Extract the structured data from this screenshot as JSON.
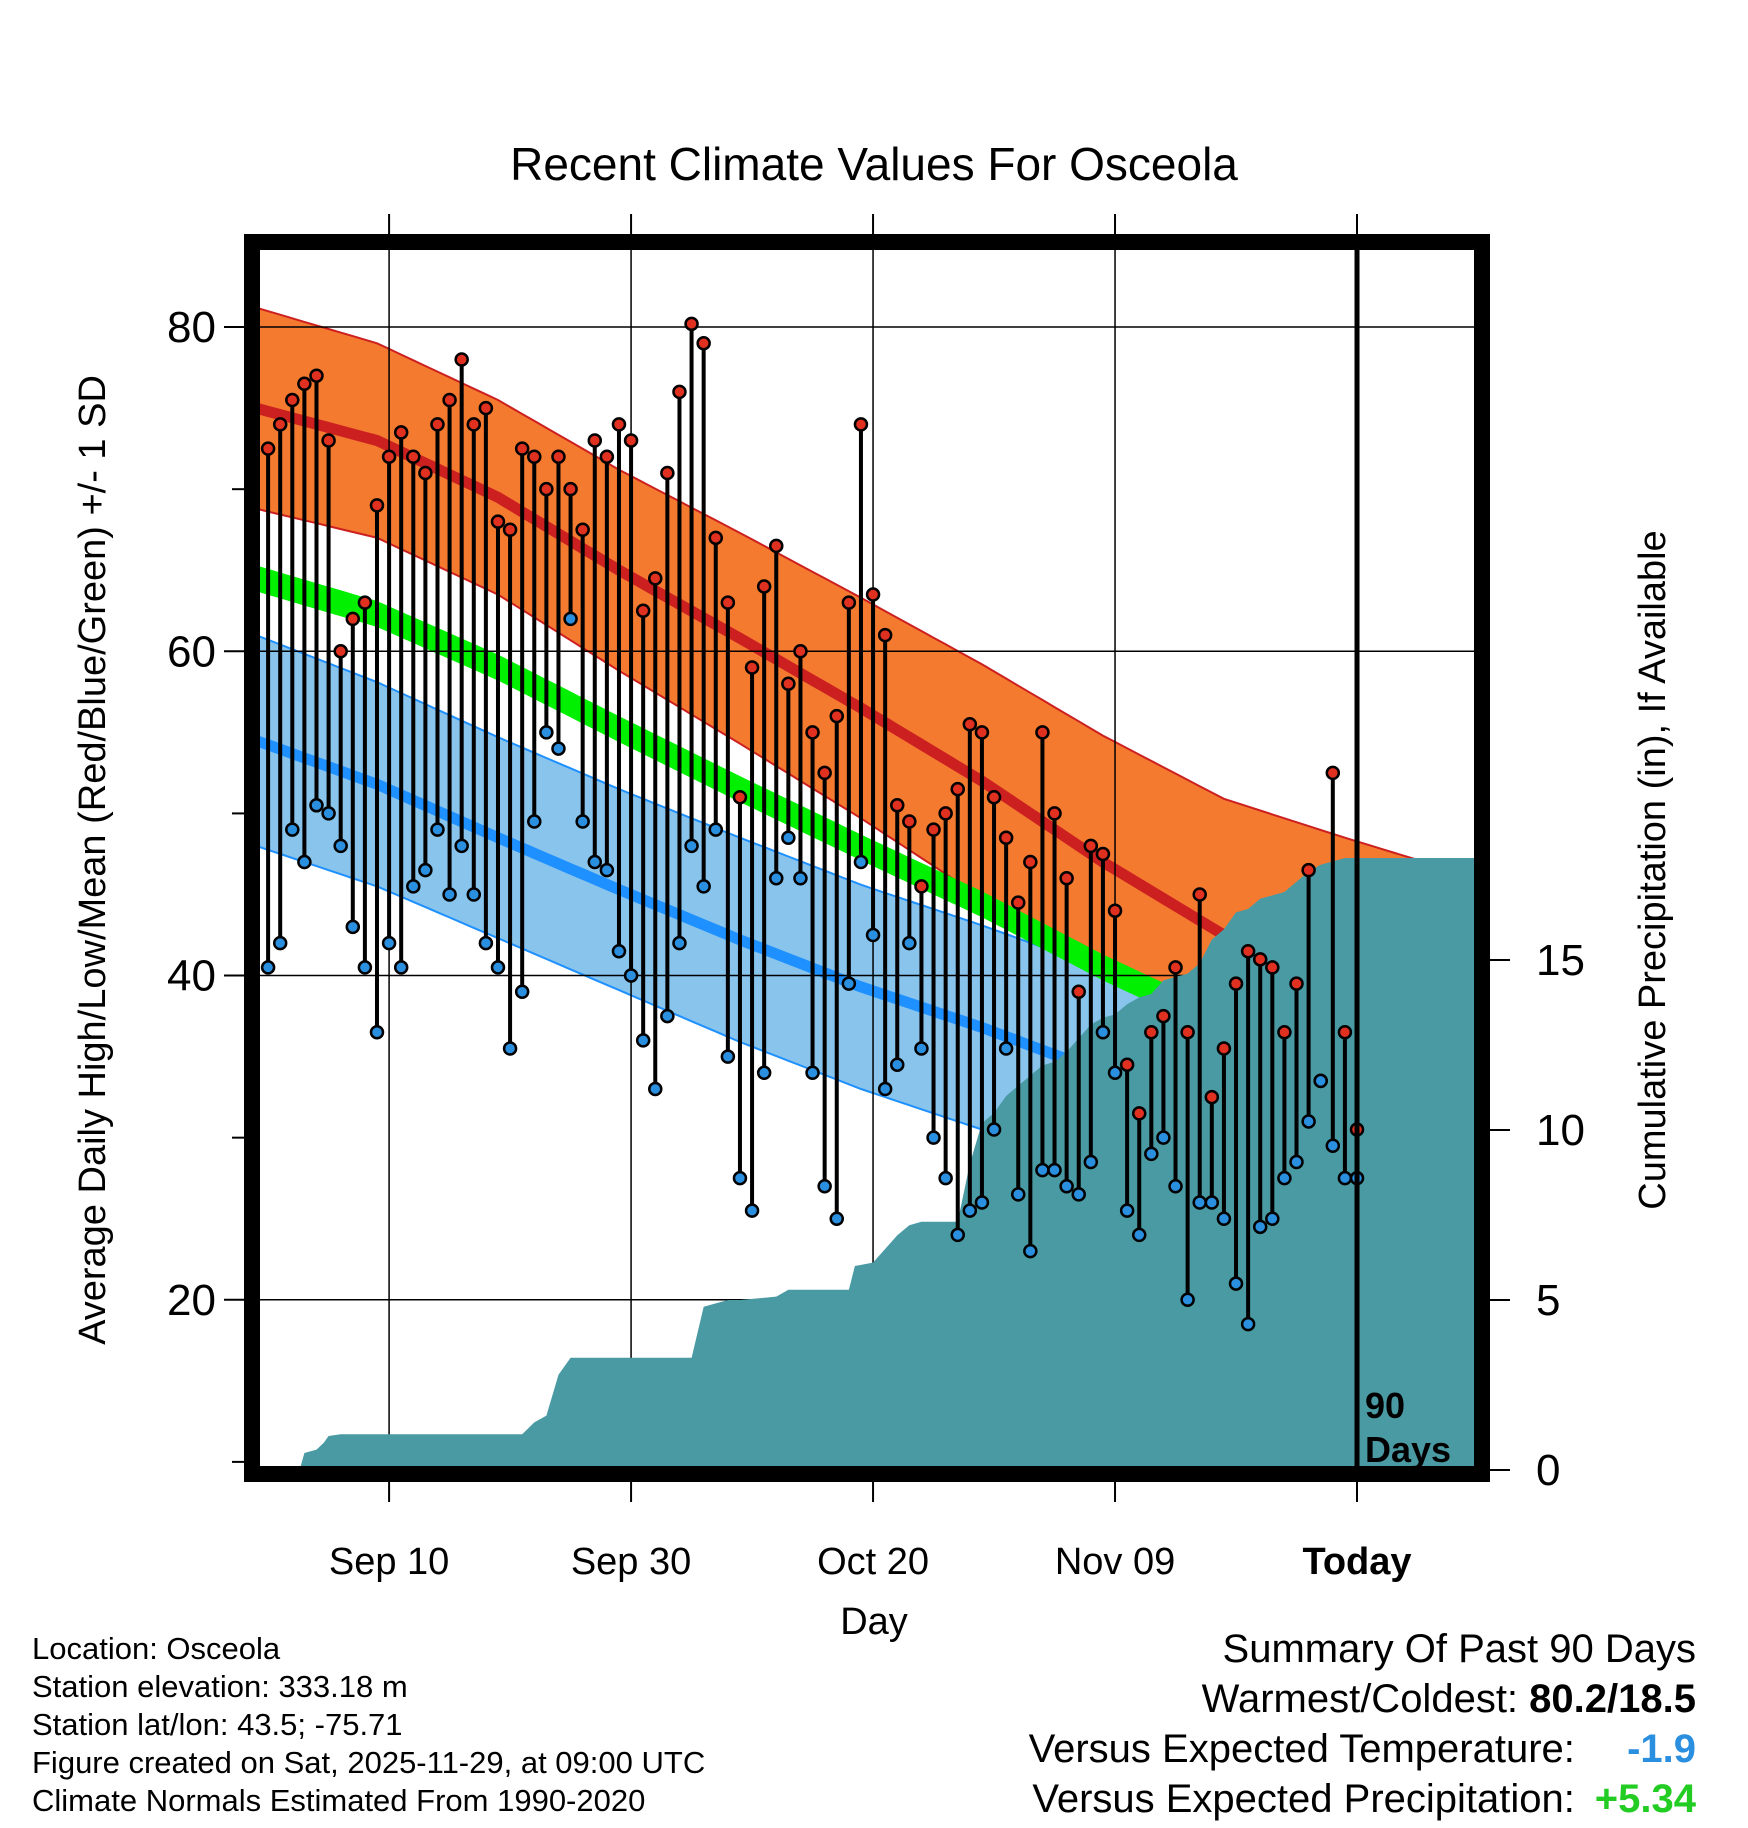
{
  "chart_data": {
    "type": "line",
    "title": "Recent Climate Values For Osceola",
    "xlabel": "Day",
    "ylabel": "Average Daily High/Low/Mean (Red/Blue/Green) +/- 1 SD",
    "y2label": "Cumulative Precipitation (in), If Available",
    "ylim": [
      9.5,
      85
    ],
    "y2lim": [
      0,
      36
    ],
    "y_ticks": [
      80,
      60,
      40,
      20
    ],
    "y2_ticks": [
      15,
      10,
      5,
      0
    ],
    "x_ticks": [
      "Sep 10",
      "Sep 30",
      "Oct 20",
      "Nov 09",
      "Today"
    ],
    "x_tick_days": [
      11,
      31,
      51,
      71,
      91
    ],
    "xlim": [
      0,
      101
    ],
    "today_label_line1": "90",
    "today_label_line2": "Days",
    "colors": {
      "high_band": "#f47a30",
      "high_mean": "#cc2020",
      "low_band": "#88c4ec",
      "low_mean": "#1e90ff",
      "mean_band": "#00f000",
      "precip": "#4a9aa4",
      "high_marker": "#e03020",
      "low_marker": "#2b8fe0"
    },
    "normals": {
      "days": [
        0,
        10,
        20,
        30,
        40,
        50,
        60,
        70,
        80,
        90,
        101
      ],
      "high_mean": [
        75.0,
        73.0,
        69.5,
        65.0,
        60.8,
        56.5,
        52.0,
        47.0,
        42.5,
        39.5,
        36.5
      ],
      "high_sd": [
        6.2,
        6.0,
        6.0,
        6.2,
        6.5,
        6.8,
        7.2,
        7.8,
        8.4,
        9.0,
        9.5
      ],
      "low_mean": [
        54.5,
        51.8,
        48.5,
        45.3,
        42.2,
        39.3,
        36.8,
        34.0,
        31.5,
        29.5,
        28.0
      ],
      "low_sd": [
        6.5,
        6.3,
        6.2,
        6.2,
        6.3,
        6.3,
        6.3,
        6.4,
        6.4,
        6.5,
        6.5
      ],
      "mean_mean": [
        64.5,
        62.3,
        59.0,
        55.2,
        51.5,
        47.9,
        44.4,
        40.5,
        37.0,
        34.5,
        32.3
      ]
    },
    "series": [
      {
        "name": "Daily High",
        "values": [
          72.5,
          74.0,
          75.5,
          76.5,
          77.0,
          73.0,
          60.0,
          62.0,
          63.0,
          69.0,
          72.0,
          73.5,
          72.0,
          71.0,
          74.0,
          75.5,
          78.0,
          74.0,
          75.0,
          68.0,
          67.5,
          72.5,
          72.0,
          70.0,
          72.0,
          70.0,
          67.5,
          73.0,
          72.0,
          74.0,
          73.0,
          62.5,
          64.5,
          71.0,
          76.0,
          80.2,
          79.0,
          67.0,
          63.0,
          51.0,
          59.0,
          64.0,
          66.5,
          58.0,
          60.0,
          55.0,
          52.5,
          56.0,
          63.0,
          74.0,
          63.5,
          61.0,
          50.5,
          49.5,
          45.5,
          49.0,
          50.0,
          51.5,
          55.5,
          55.0,
          51.0,
          48.5,
          44.5,
          47.0,
          55.0,
          50.0,
          46.0,
          39.0,
          48.0,
          47.5,
          44.0,
          34.5,
          31.5,
          36.5,
          37.5,
          40.5,
          36.5,
          45.0,
          32.5,
          35.5,
          39.5,
          41.5,
          41.0,
          40.5,
          36.5,
          39.5,
          46.5,
          33.5,
          52.5,
          36.5,
          30.5
        ]
      },
      {
        "name": "Daily Low",
        "values": [
          40.5,
          42.0,
          49.0,
          47.0,
          50.5,
          50.0,
          48.0,
          43.0,
          40.5,
          36.5,
          42.0,
          40.5,
          45.5,
          46.5,
          49.0,
          45.0,
          48.0,
          45.0,
          42.0,
          40.5,
          35.5,
          39.0,
          49.5,
          55.0,
          54.0,
          62.0,
          49.5,
          47.0,
          46.5,
          41.5,
          40.0,
          36.0,
          33.0,
          37.5,
          42.0,
          48.0,
          45.5,
          49.0,
          35.0,
          27.5,
          25.5,
          34.0,
          46.0,
          48.5,
          46.0,
          34.0,
          27.0,
          25.0,
          39.5,
          47.0,
          42.5,
          33.0,
          34.5,
          42.0,
          35.5,
          30.0,
          27.5,
          24.0,
          25.5,
          26.0,
          30.5,
          35.5,
          26.5,
          23.0,
          28.0,
          28.0,
          27.0,
          26.5,
          28.5,
          36.5,
          34.0,
          25.5,
          24.0,
          29.0,
          30.0,
          27.0,
          20.0,
          26.0,
          26.0,
          25.0,
          21.0,
          18.5,
          24.5,
          25.0,
          27.5,
          28.5,
          31.0,
          33.5,
          29.5,
          27.5,
          27.5
        ]
      }
    ],
    "precip_cumulative": {
      "days": [
        0,
        3.6,
        4,
        5,
        5.6,
        6,
        7,
        22,
        23,
        24,
        25,
        26,
        36,
        37,
        38,
        39,
        40,
        43,
        44,
        49,
        49.5,
        51,
        52,
        53,
        54,
        55,
        58,
        59,
        60,
        61,
        62,
        63,
        64,
        65,
        66,
        67,
        68,
        69,
        70,
        71,
        72,
        73,
        74,
        75,
        76,
        77,
        78,
        79,
        80,
        81,
        82,
        83,
        84,
        85,
        86,
        87,
        88,
        89,
        90,
        91,
        101
      ],
      "values": [
        0,
        0,
        0.5,
        0.6,
        0.8,
        1.0,
        1.05,
        1.05,
        1.4,
        1.6,
        2.8,
        3.3,
        3.3,
        4.8,
        4.9,
        5.0,
        5.0,
        5.1,
        5.3,
        5.3,
        6.0,
        6.1,
        6.5,
        6.9,
        7.2,
        7.3,
        7.3,
        9.0,
        10.2,
        10.5,
        11.0,
        11.3,
        11.6,
        11.9,
        12.0,
        12.3,
        12.7,
        13.1,
        13.3,
        13.4,
        13.7,
        13.9,
        14.0,
        14.4,
        14.5,
        14.6,
        14.9,
        15.6,
        15.9,
        16.4,
        16.5,
        16.8,
        16.9,
        17.0,
        17.3,
        17.6,
        17.8,
        17.9,
        18.0,
        18.0,
        18.0
      ]
    }
  },
  "footer": {
    "location": "Location: Osceola",
    "elevation": "Station elevation: 333.18 m",
    "latlon": "Station lat/lon: 43.5; -75.71",
    "created": "Figure created on Sat, 2025-11-29, at 09:00 UTC",
    "normals": "Climate Normals Estimated From 1990-2020"
  },
  "summary": {
    "title": "Summary Of Past 90 Days",
    "warmest_coldest_label": "Warmest/Coldest:",
    "warmest_coldest_value": "80.2/18.5",
    "temp_label": "Versus Expected Temperature:",
    "temp_value": "-1.9",
    "temp_color": "#2b8fe0",
    "precip_label": "Versus Expected Precipitation:",
    "precip_value": "+5.34",
    "precip_color": "#22cc22"
  }
}
